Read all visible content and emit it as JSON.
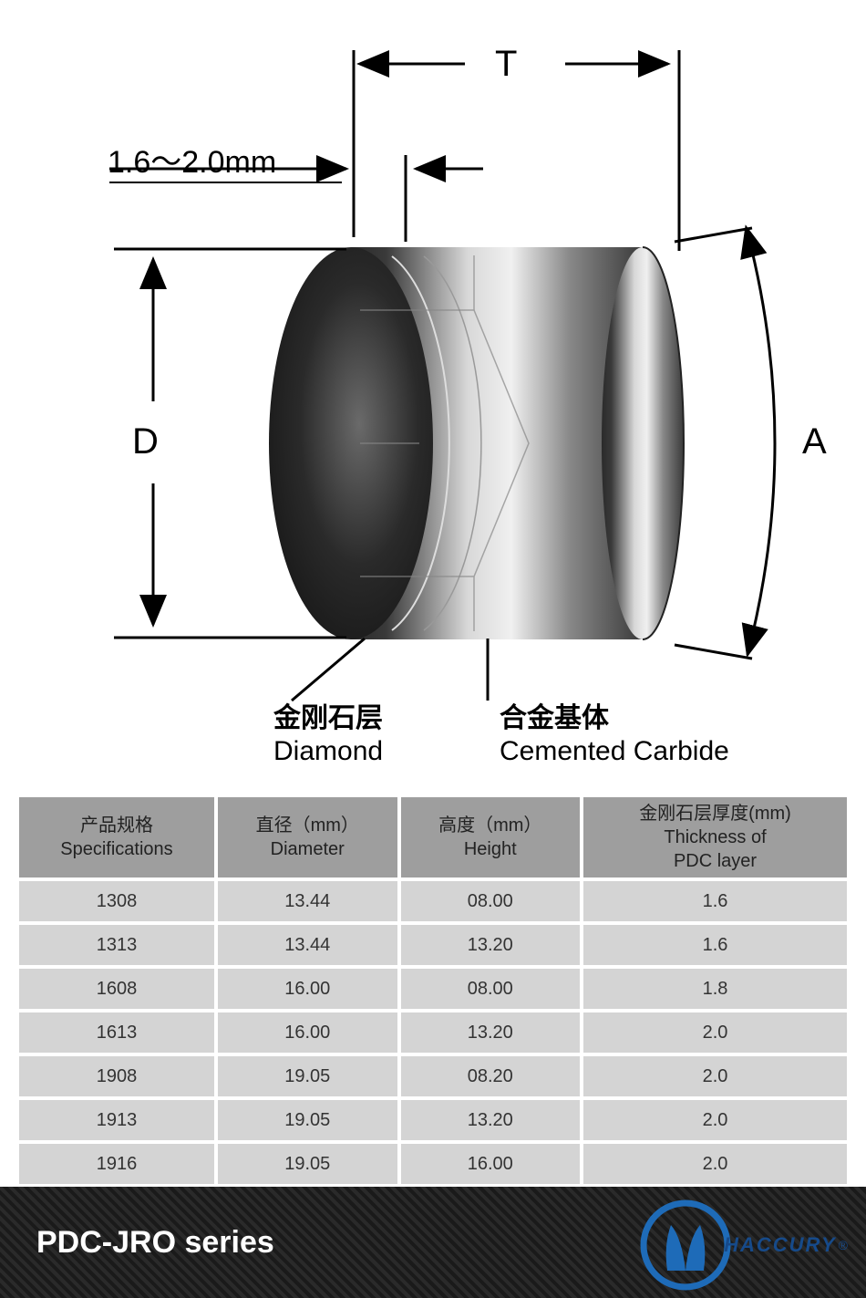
{
  "diagram": {
    "thickness_range": "1.6～2.0mm",
    "label_T": "T",
    "label_D": "D",
    "label_A": "A",
    "diamond_cn": "金刚石层",
    "diamond_en": "Diamond",
    "carbide_cn": "合金基体",
    "carbide_en": "Cemented Carbide",
    "colors": {
      "cylinder_dark": "#3a3a3a",
      "cylinder_light": "#c8c8c8",
      "cylinder_mid": "#6a6a6a"
    }
  },
  "table": {
    "headers": {
      "spec_cn": "产品规格",
      "spec_en": "Specifications",
      "dia_cn": "直径（mm）",
      "dia_en": "Diameter",
      "height_cn": "高度（mm）",
      "height_en": "Height",
      "thick_cn": "金刚石层厚度(mm)",
      "thick_en1": "Thickness of",
      "thick_en2": "PDC layer"
    },
    "header_bg": "#9e9e9e",
    "row_bg": "#d4d4d4",
    "rows": [
      {
        "spec": "1308",
        "dia": "13.44",
        "h": "08.00",
        "t": "1.6"
      },
      {
        "spec": "1313",
        "dia": "13.44",
        "h": "13.20",
        "t": "1.6"
      },
      {
        "spec": "1608",
        "dia": "16.00",
        "h": "08.00",
        "t": "1.8"
      },
      {
        "spec": "1613",
        "dia": "16.00",
        "h": "13.20",
        "t": "2.0"
      },
      {
        "spec": "1908",
        "dia": "19.05",
        "h": "08.20",
        "t": "2.0"
      },
      {
        "spec": "1913",
        "dia": "19.05",
        "h": "13.20",
        "t": "2.0"
      },
      {
        "spec": "1916",
        "dia": "19.05",
        "h": "16.00",
        "t": "2.0"
      }
    ]
  },
  "footer": {
    "title": "PDC-JRO series",
    "brand": "HACCURY",
    "logo_color": "#1e6bb8"
  }
}
